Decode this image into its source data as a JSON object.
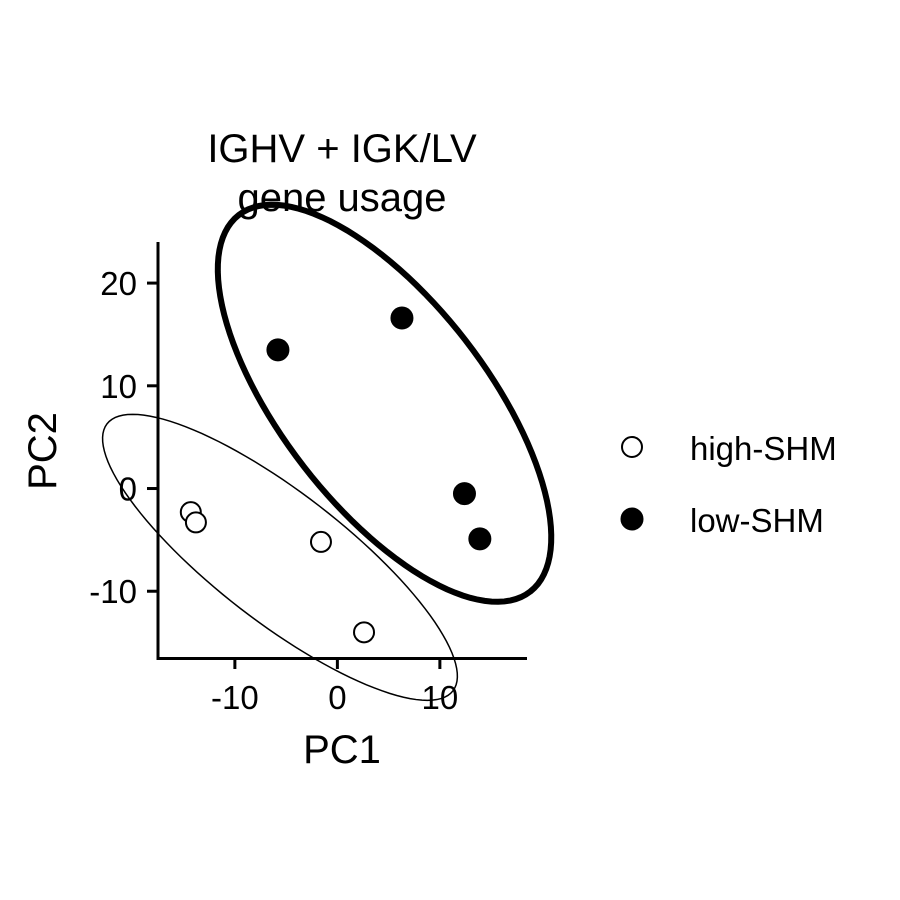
{
  "chart_data": {
    "type": "scatter",
    "title_lines": [
      "IGHV + IGK/LV",
      "gene usage"
    ],
    "xlabel": "PC1",
    "ylabel": "PC2",
    "xlim": [
      -17.5,
      18.5
    ],
    "ylim": [
      -16.5,
      24
    ],
    "x_ticks": [
      -10,
      0,
      10
    ],
    "y_ticks": [
      -10,
      0,
      10,
      20
    ],
    "grid": false,
    "legend_position": "right",
    "series": [
      {
        "name": "high-SHM",
        "marker": "open-circle",
        "color": "#000000",
        "points": [
          {
            "x": -14.3,
            "y": -2.3
          },
          {
            "x": -13.8,
            "y": -3.3
          },
          {
            "x": -1.6,
            "y": -5.2
          },
          {
            "x": 2.6,
            "y": -14.0
          }
        ],
        "ellipse": {
          "cx": -5.6,
          "cy": -6.7,
          "rx": 21.3,
          "ry": 6.3,
          "angle_deg": -37.6,
          "stroke_width": 1.5
        }
      },
      {
        "name": "low-SHM",
        "marker": "filled-circle",
        "color": "#000000",
        "points": [
          {
            "x": -5.8,
            "y": 13.5
          },
          {
            "x": 6.3,
            "y": 16.6
          },
          {
            "x": 12.4,
            "y": -0.5
          },
          {
            "x": 13.9,
            "y": -4.9
          }
        ],
        "ellipse": {
          "cx": 4.6,
          "cy": 8.3,
          "rx": 23.2,
          "ry": 10.0,
          "angle_deg": -52.2,
          "stroke_width": 6
        }
      }
    ]
  }
}
